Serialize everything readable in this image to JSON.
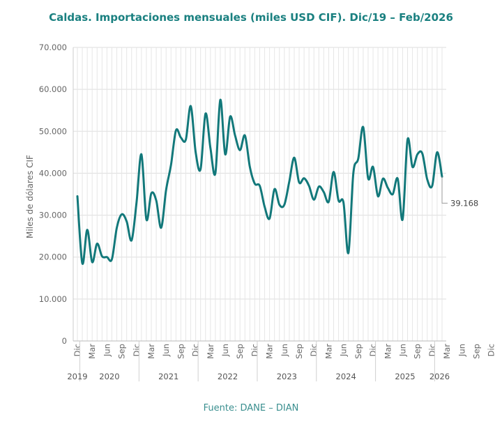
{
  "chart_data": {
    "type": "line",
    "title": "Caldas. Importaciones mensuales (miles USD CIF). Dic/19 – Feb/2026",
    "ylabel": "Miles de dólares CIF",
    "ylim": [
      0,
      70000
    ],
    "yticks": [
      "0",
      "10.000",
      "20.000",
      "30.000",
      "40.000",
      "50.000",
      "60.000",
      "70.000"
    ],
    "ytick_values": [
      0,
      10000,
      20000,
      30000,
      40000,
      50000,
      60000,
      70000
    ],
    "grid": true,
    "series_color": "#12787a",
    "x": [
      "2019-12",
      "2020-01",
      "2020-02",
      "2020-03",
      "2020-04",
      "2020-05",
      "2020-06",
      "2020-07",
      "2020-08",
      "2020-09",
      "2020-10",
      "2020-11",
      "2020-12",
      "2021-01",
      "2021-02",
      "2021-03",
      "2021-04",
      "2021-05",
      "2021-06",
      "2021-07",
      "2021-08",
      "2021-09",
      "2021-10",
      "2021-11",
      "2021-12",
      "2022-01",
      "2022-02",
      "2022-03",
      "2022-04",
      "2022-05",
      "2022-06",
      "2022-07",
      "2022-08",
      "2022-09",
      "2022-10",
      "2022-11",
      "2022-12",
      "2023-01",
      "2023-02",
      "2023-03",
      "2023-04",
      "2023-05",
      "2023-06",
      "2023-07",
      "2023-08",
      "2023-09",
      "2023-10",
      "2023-11",
      "2023-12",
      "2024-01",
      "2024-02",
      "2024-03",
      "2024-04",
      "2024-05",
      "2024-06",
      "2024-07",
      "2024-08",
      "2024-09",
      "2024-10",
      "2024-11",
      "2024-12",
      "2025-01",
      "2025-02",
      "2025-03",
      "2025-04",
      "2025-05",
      "2025-06",
      "2025-07",
      "2025-08",
      "2025-09",
      "2025-10",
      "2025-11",
      "2025-12",
      "2026-01",
      "2026-02"
    ],
    "values": [
      34500,
      18500,
      26500,
      18800,
      23200,
      20200,
      20000,
      19500,
      27000,
      30200,
      28500,
      24000,
      33000,
      44500,
      29000,
      35200,
      33500,
      27000,
      36000,
      42000,
      50200,
      48500,
      48000,
      56000,
      45000,
      41000,
      54200,
      46000,
      40000,
      57500,
      44500,
      53500,
      49000,
      45500,
      49000,
      41500,
      37500,
      37000,
      32000,
      29200,
      36200,
      32500,
      32500,
      38000,
      43700,
      37800,
      38800,
      37000,
      33700,
      36800,
      35500,
      33200,
      40300,
      33500,
      33000,
      21000,
      40000,
      43500,
      51000,
      38800,
      41500,
      34500,
      38700,
      36500,
      35000,
      38700,
      29000,
      48000,
      41500,
      44500,
      44700,
      38500,
      37000,
      45000,
      39168
    ],
    "xtick_labels": [
      "Dic",
      "Mar",
      "Jun",
      "Sep",
      "Dic",
      "Mar",
      "Jun",
      "Sep",
      "Dic",
      "Mar",
      "Jun",
      "Sep",
      "Dic",
      "Mar",
      "Jun",
      "Sep",
      "Dic",
      "Mar",
      "Jun",
      "Sep",
      "Dic",
      "Mar",
      "Jun",
      "Sep",
      "Dic",
      "Mar",
      "Jun",
      "Sep",
      "Dic"
    ],
    "xtick_indices": [
      0,
      3,
      6,
      9,
      12,
      15,
      18,
      21,
      24,
      27,
      30,
      33,
      36,
      39,
      42,
      45,
      48,
      51,
      54,
      57,
      60,
      63,
      66,
      69,
      72,
      75,
      78,
      81,
      84
    ],
    "years": [
      {
        "label": "2019",
        "center_index": 0
      },
      {
        "label": "2020",
        "center_index": 6.5
      },
      {
        "label": "2021",
        "center_index": 18.5
      },
      {
        "label": "2022",
        "center_index": 30.5
      },
      {
        "label": "2023",
        "center_index": 42.5
      },
      {
        "label": "2024",
        "center_index": 54.5
      },
      {
        "label": "2025",
        "center_index": 66.5
      },
      {
        "label": "2026",
        "center_index": 73.5
      }
    ],
    "year_separators_after_index": [
      0,
      12,
      24,
      36,
      48,
      60,
      72
    ],
    "last_value_label": "39.168"
  },
  "source": "Fuente: DANE – DIAN"
}
